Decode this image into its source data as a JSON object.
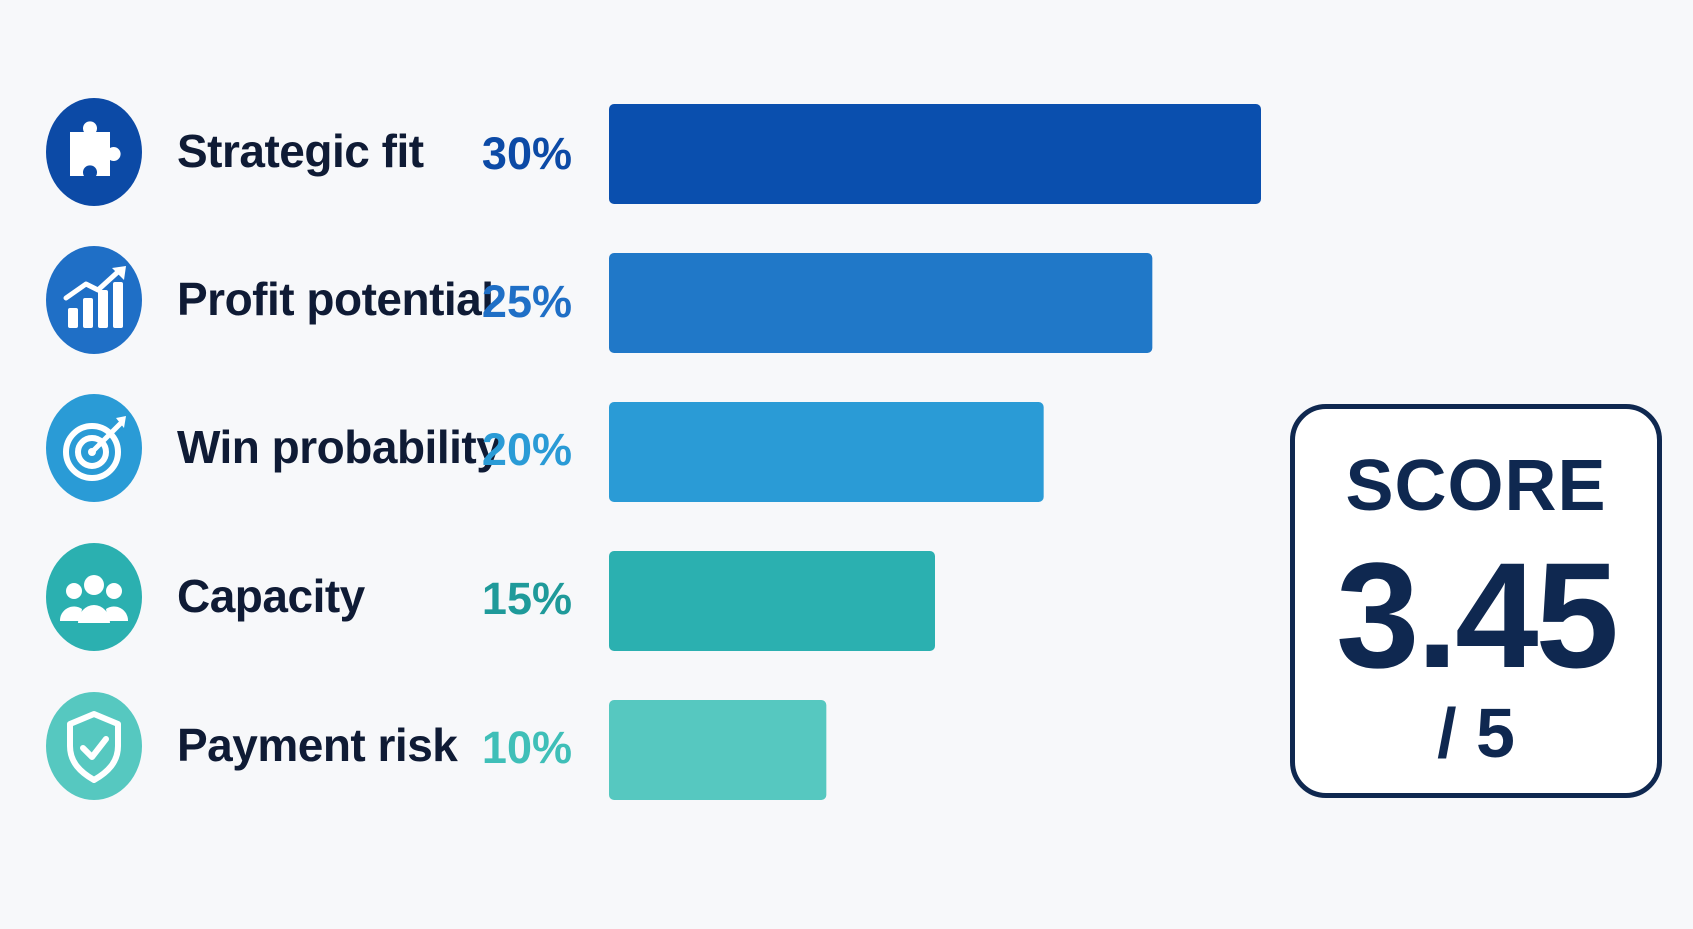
{
  "chart_data": {
    "type": "bar",
    "orientation": "horizontal",
    "categories": [
      "Strategic fit",
      "Profit potential",
      "Win probability",
      "Capacity",
      "Payment risk"
    ],
    "values": [
      30,
      25,
      20,
      15,
      10
    ],
    "value_labels": [
      "30%",
      "25%",
      "20%",
      "15%",
      "10%"
    ],
    "unit": "%",
    "xlim": [
      0,
      30
    ],
    "grid": false,
    "legend": "none",
    "colors": [
      "#0a4fae",
      "#2078c8",
      "#2a9bd6",
      "#2bb0b0",
      "#56c8c0"
    ],
    "icons": [
      "puzzle-icon",
      "growth-chart-icon",
      "target-icon",
      "team-icon",
      "shield-check-icon"
    ],
    "score": {
      "title": "SCORE",
      "value": "3.45",
      "denominator": "/ 5"
    }
  }
}
